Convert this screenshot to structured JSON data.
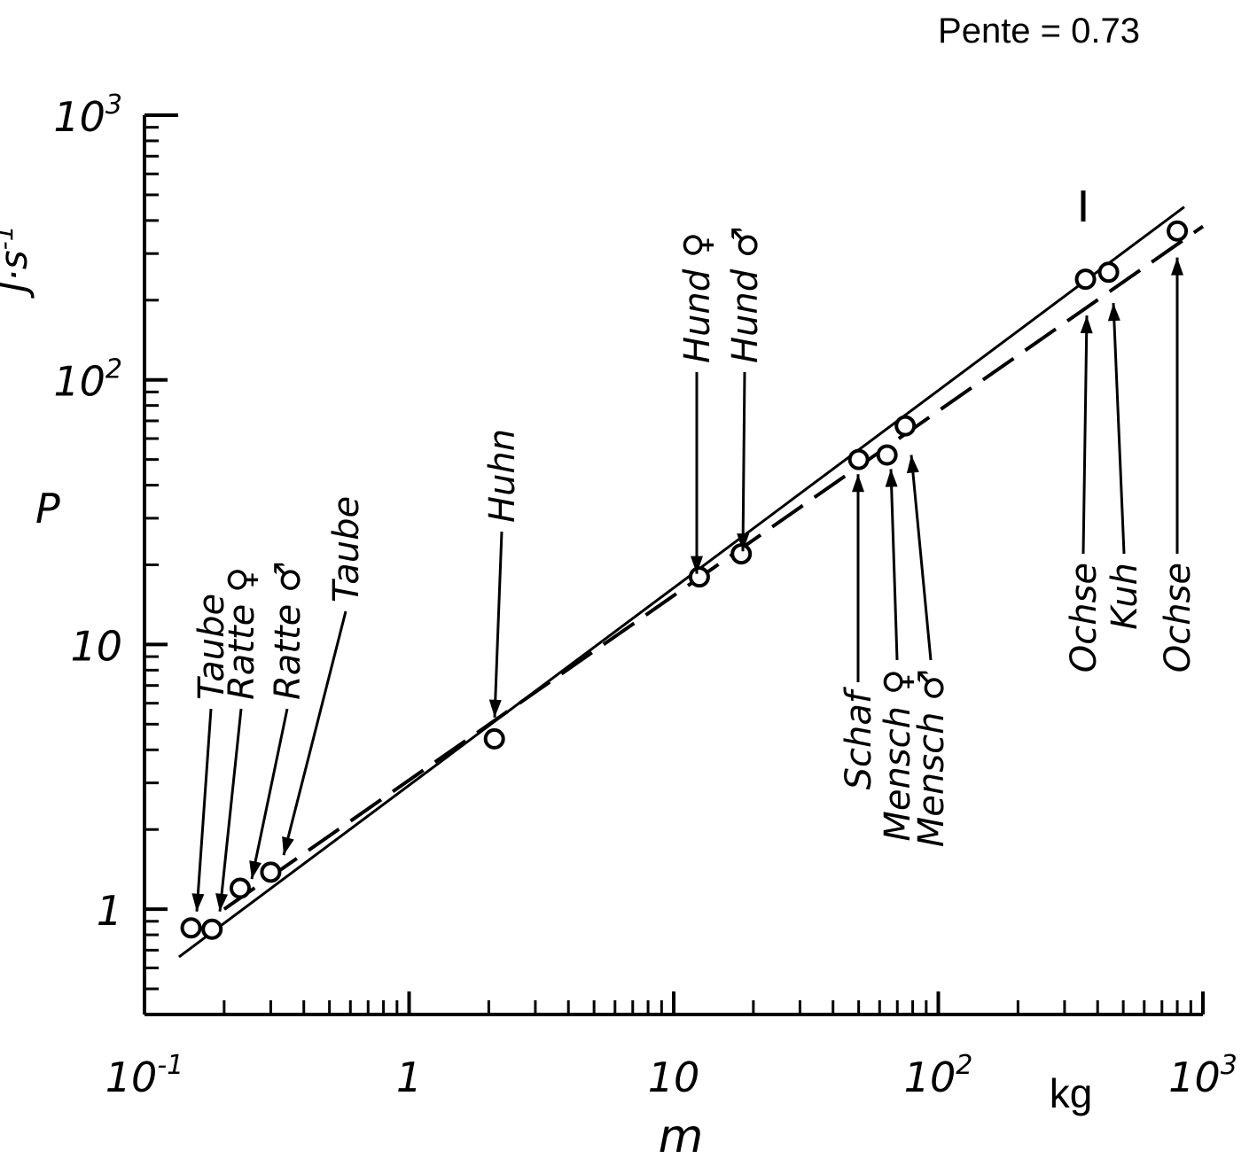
{
  "chart_data": {
    "type": "scatter",
    "annotation": "Pente = 0.73",
    "x_axis": {
      "label": "m",
      "unit": "kg",
      "scale": "log",
      "range": [
        0.1,
        1000
      ],
      "tick_labels": [
        {
          "value": 0.1,
          "base": "10",
          "exp": "-1"
        },
        {
          "value": 1,
          "base": "1",
          "exp": ""
        },
        {
          "value": 10,
          "base": "10",
          "exp": ""
        },
        {
          "value": 100,
          "base": "10",
          "exp": "2"
        },
        {
          "value": 1000,
          "base": "10",
          "exp": "3"
        }
      ]
    },
    "y_axis": {
      "label": "P",
      "unit_base": "J·s",
      "unit_exp": "-1",
      "scale": "log",
      "range": [
        0.4,
        1000
      ],
      "tick_labels": [
        {
          "value": 1,
          "base": "1",
          "exp": ""
        },
        {
          "value": 10,
          "base": "10",
          "exp": ""
        },
        {
          "value": 100,
          "base": "10",
          "exp": "2"
        },
        {
          "value": 1000,
          "base": "10",
          "exp": "3"
        }
      ]
    },
    "points": [
      {
        "label": "Taube",
        "m": 0.15,
        "p": 0.85,
        "arrow_to": 0.98
      },
      {
        "label": "Ratte ♀",
        "m": 0.18,
        "p": 0.84,
        "arrow_to": 0.98
      },
      {
        "label": "Ratte ♂",
        "m": 0.23,
        "p": 1.2,
        "arrow_to": 1.3
      },
      {
        "label": "Taube",
        "m": 0.3,
        "p": 1.38,
        "arrow_to": 1.6
      },
      {
        "label": "Huhn",
        "m": 2.1,
        "p": 4.4,
        "arrow_to": 5.3
      },
      {
        "label": "Hund ♀",
        "m": 12.5,
        "p": 18,
        "arrow_to": 18.5
      },
      {
        "label": "Hund ♂",
        "m": 18,
        "p": 22,
        "arrow_to": 22.5
      },
      {
        "label": "Schaf",
        "m": 50,
        "p": 50,
        "arrow_to": 44
      },
      {
        "label": "Mensch ♀",
        "m": 64,
        "p": 52,
        "arrow_to": 46
      },
      {
        "label": "Mensch ♂",
        "m": 75,
        "p": 67,
        "arrow_to": 52
      },
      {
        "label": "Ochse",
        "m": 360,
        "p": 240,
        "arrow_to": 175
      },
      {
        "label": "Kuh",
        "m": 440,
        "p": 255,
        "arrow_to": 195
      },
      {
        "label": "Ochse",
        "m": 800,
        "p": 365,
        "arrow_to": 290
      }
    ],
    "fit_lines": [
      {
        "style": "solid",
        "from": [
          0.135,
          0.66
        ],
        "to": [
          850,
          450
        ]
      },
      {
        "style": "dashed",
        "from": [
          0.2,
          1.0
        ],
        "to": [
          1000,
          380
        ]
      }
    ],
    "grid": false,
    "legend": "none"
  }
}
